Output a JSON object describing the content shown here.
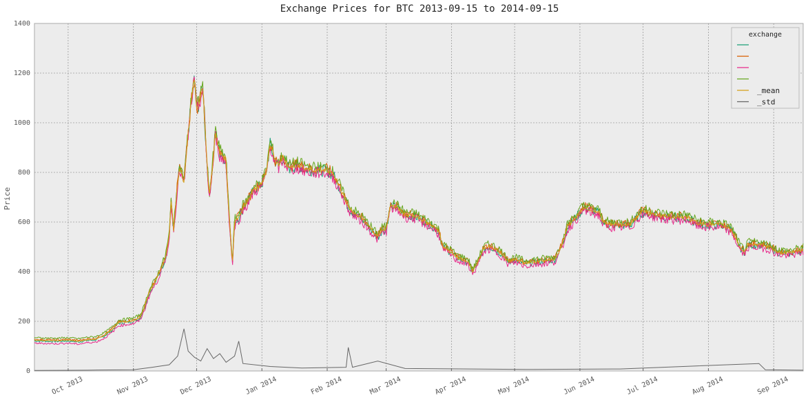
{
  "chart_data": {
    "type": "line",
    "title": "Exchange Prices for BTC 2013-09-15 to 2014-09-15",
    "ylabel": "Price",
    "xlabel": "",
    "xlim": [
      "2013-09-15",
      "2014-09-15"
    ],
    "ylim": [
      0,
      1400
    ],
    "y_ticks": [
      0,
      200,
      400,
      600,
      800,
      1000,
      1200,
      1400
    ],
    "x_ticks": [
      {
        "date": "2013-10-01",
        "label": "Oct 2013"
      },
      {
        "date": "2013-11-01",
        "label": "Nov 2013"
      },
      {
        "date": "2013-12-01",
        "label": "Dec 2013"
      },
      {
        "date": "2014-01-01",
        "label": "Jan 2014"
      },
      {
        "date": "2014-02-01",
        "label": "Feb 2014"
      },
      {
        "date": "2014-03-01",
        "label": "Mar 2014"
      },
      {
        "date": "2014-04-01",
        "label": "Apr 2014"
      },
      {
        "date": "2014-05-01",
        "label": "May 2014"
      },
      {
        "date": "2014-06-01",
        "label": "Jun 2014"
      },
      {
        "date": "2014-07-01",
        "label": "Jul 2014"
      },
      {
        "date": "2014-08-01",
        "label": "Aug 2014"
      },
      {
        "date": "2014-09-01",
        "label": "Sep 2014"
      }
    ],
    "grid": true,
    "legend": {
      "title": "exchange",
      "placement": "top-right"
    },
    "series": [
      {
        "name": "",
        "color": "#1b9e77",
        "offset": -3,
        "role": "exchange"
      },
      {
        "name": "",
        "color": "#d95f02",
        "offset": 3,
        "role": "exchange"
      },
      {
        "name": "",
        "color": "#e7298a",
        "offset": -12,
        "role": "exchange"
      },
      {
        "name": "",
        "color": "#66a61e",
        "offset": 10,
        "role": "exchange"
      },
      {
        "name": "_mean",
        "color": "#d4a017",
        "offset": 0,
        "role": "mean"
      },
      {
        "name": "_std",
        "color": "#666666",
        "role": "std",
        "points": [
          [
            "2013-09-15",
            2
          ],
          [
            "2013-10-10",
            3
          ],
          [
            "2013-10-15",
            4
          ],
          [
            "2013-11-01",
            5
          ],
          [
            "2013-11-10",
            15
          ],
          [
            "2013-11-18",
            25
          ],
          [
            "2013-11-22",
            60
          ],
          [
            "2013-11-25",
            170
          ],
          [
            "2013-11-27",
            80
          ],
          [
            "2013-11-30",
            55
          ],
          [
            "2013-12-03",
            40
          ],
          [
            "2013-12-06",
            90
          ],
          [
            "2013-12-09",
            50
          ],
          [
            "2013-12-12",
            70
          ],
          [
            "2013-12-15",
            35
          ],
          [
            "2013-12-19",
            60
          ],
          [
            "2013-12-21",
            120
          ],
          [
            "2013-12-23",
            30
          ],
          [
            "2014-01-05",
            18
          ],
          [
            "2014-01-20",
            12
          ],
          [
            "2014-02-10",
            15
          ],
          [
            "2014-02-11",
            95
          ],
          [
            "2014-02-13",
            15
          ],
          [
            "2014-02-25",
            40
          ],
          [
            "2014-03-10",
            10
          ],
          [
            "2014-04-10",
            8
          ],
          [
            "2014-05-10",
            6
          ],
          [
            "2014-06-20",
            8
          ],
          [
            "2014-08-25",
            30
          ],
          [
            "2014-08-28",
            5
          ],
          [
            "2014-09-15",
            3
          ]
        ]
      }
    ],
    "price_points": [
      [
        "2013-09-15",
        124
      ],
      [
        "2013-09-25",
        122
      ],
      [
        "2013-10-01",
        124
      ],
      [
        "2013-10-06",
        120
      ],
      [
        "2013-10-10",
        126
      ],
      [
        "2013-10-14",
        128
      ],
      [
        "2013-10-18",
        143
      ],
      [
        "2013-10-22",
        168
      ],
      [
        "2013-10-25",
        195
      ],
      [
        "2013-10-28",
        198
      ],
      [
        "2013-11-01",
        203
      ],
      [
        "2013-11-04",
        215
      ],
      [
        "2013-11-06",
        250
      ],
      [
        "2013-11-08",
        305
      ],
      [
        "2013-11-10",
        340
      ],
      [
        "2013-11-12",
        370
      ],
      [
        "2013-11-14",
        410
      ],
      [
        "2013-11-16",
        450
      ],
      [
        "2013-11-18",
        540
      ],
      [
        "2013-11-19",
        700
      ],
      [
        "2013-11-20",
        560
      ],
      [
        "2013-11-22",
        760
      ],
      [
        "2013-11-23",
        820
      ],
      [
        "2013-11-25",
        760
      ],
      [
        "2013-11-27",
        960
      ],
      [
        "2013-11-29",
        1130
      ],
      [
        "2013-11-30",
        1180
      ],
      [
        "2013-12-01",
        1050
      ],
      [
        "2013-12-02",
        1080
      ],
      [
        "2013-12-04",
        1150
      ],
      [
        "2013-12-05",
        970
      ],
      [
        "2013-12-07",
        700
      ],
      [
        "2013-12-08",
        780
      ],
      [
        "2013-12-10",
        960
      ],
      [
        "2013-12-12",
        880
      ],
      [
        "2013-12-13",
        870
      ],
      [
        "2013-12-15",
        850
      ],
      [
        "2013-12-16",
        680
      ],
      [
        "2013-12-17",
        560
      ],
      [
        "2013-12-18",
        430
      ],
      [
        "2013-12-19",
        600
      ],
      [
        "2013-12-21",
        620
      ],
      [
        "2013-12-23",
        660
      ],
      [
        "2013-12-25",
        680
      ],
      [
        "2013-12-28",
        730
      ],
      [
        "2014-01-01",
        755
      ],
      [
        "2014-01-03",
        800
      ],
      [
        "2014-01-05",
        920
      ],
      [
        "2014-01-07",
        850
      ],
      [
        "2014-01-09",
        830
      ],
      [
        "2014-01-11",
        860
      ],
      [
        "2014-01-14",
        820
      ],
      [
        "2014-01-18",
        830
      ],
      [
        "2014-01-22",
        815
      ],
      [
        "2014-01-26",
        810
      ],
      [
        "2014-02-01",
        810
      ],
      [
        "2014-02-04",
        790
      ],
      [
        "2014-02-07",
        740
      ],
      [
        "2014-02-10",
        680
      ],
      [
        "2014-02-12",
        650
      ],
      [
        "2014-02-15",
        630
      ],
      [
        "2014-02-18",
        610
      ],
      [
        "2014-02-21",
        580
      ],
      [
        "2014-02-25",
        540
      ],
      [
        "2014-02-27",
        570
      ],
      [
        "2014-03-01",
        570
      ],
      [
        "2014-03-03",
        670
      ],
      [
        "2014-03-06",
        660
      ],
      [
        "2014-03-10",
        630
      ],
      [
        "2014-03-15",
        625
      ],
      [
        "2014-03-20",
        600
      ],
      [
        "2014-03-24",
        580
      ],
      [
        "2014-03-26",
        560
      ],
      [
        "2014-03-28",
        500
      ],
      [
        "2014-04-01",
        480
      ],
      [
        "2014-04-03",
        460
      ],
      [
        "2014-04-06",
        450
      ],
      [
        "2014-04-09",
        440
      ],
      [
        "2014-04-11",
        400
      ],
      [
        "2014-04-13",
        430
      ],
      [
        "2014-04-16",
        490
      ],
      [
        "2014-04-18",
        500
      ],
      [
        "2014-04-20",
        500
      ],
      [
        "2014-04-24",
        480
      ],
      [
        "2014-04-28",
        440
      ],
      [
        "2014-05-01",
        450
      ],
      [
        "2014-05-06",
        435
      ],
      [
        "2014-05-10",
        440
      ],
      [
        "2014-05-15",
        445
      ],
      [
        "2014-05-20",
        450
      ],
      [
        "2014-05-22",
        480
      ],
      [
        "2014-05-24",
        520
      ],
      [
        "2014-05-26",
        580
      ],
      [
        "2014-05-30",
        620
      ],
      [
        "2014-06-01",
        640
      ],
      [
        "2014-06-03",
        660
      ],
      [
        "2014-06-06",
        650
      ],
      [
        "2014-06-10",
        640
      ],
      [
        "2014-06-12",
        600
      ],
      [
        "2014-06-15",
        590
      ],
      [
        "2014-06-20",
        590
      ],
      [
        "2014-06-25",
        590
      ],
      [
        "2014-06-30",
        640
      ],
      [
        "2014-07-03",
        640
      ],
      [
        "2014-07-10",
        625
      ],
      [
        "2014-07-17",
        620
      ],
      [
        "2014-07-22",
        620
      ],
      [
        "2014-07-27",
        595
      ],
      [
        "2014-08-01",
        590
      ],
      [
        "2014-08-07",
        590
      ],
      [
        "2014-08-12",
        570
      ],
      [
        "2014-08-16",
        500
      ],
      [
        "2014-08-18",
        480
      ],
      [
        "2014-08-20",
        510
      ],
      [
        "2014-08-25",
        510
      ],
      [
        "2014-08-30",
        500
      ],
      [
        "2014-09-03",
        480
      ],
      [
        "2014-09-08",
        475
      ],
      [
        "2014-09-15",
        490
      ]
    ]
  }
}
